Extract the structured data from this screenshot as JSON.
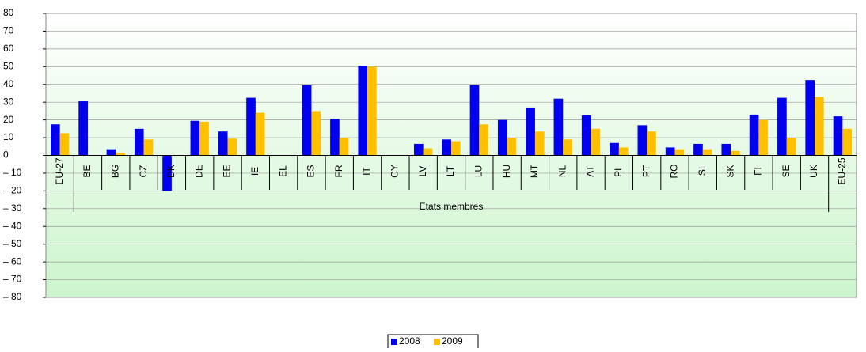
{
  "chart_data": {
    "type": "bar",
    "x_label": "Etats membres",
    "categories": [
      "EU-27",
      "BE",
      "BG",
      "CZ",
      "DK",
      "DE",
      "EE",
      "IE",
      "EL",
      "ES",
      "FR",
      "IT",
      "CY",
      "LV",
      "LT",
      "LU",
      "HU",
      "MT",
      "NL",
      "AT",
      "PL",
      "PT",
      "RO",
      "SI",
      "SK",
      "FI",
      "SE",
      "UK",
      "EU-25"
    ],
    "series": [
      {
        "name": "2008",
        "color": "#0000ee",
        "values": [
          17.5,
          30.5,
          3.5,
          15,
          -20,
          19.5,
          13.5,
          32.5,
          null,
          39.5,
          20.5,
          50.5,
          null,
          6.5,
          9,
          39.5,
          20,
          27,
          32,
          22.5,
          7,
          17,
          4.5,
          6.5,
          6.5,
          23,
          32.5,
          42.5,
          22
        ]
      },
      {
        "name": "2009",
        "color": "#ffc000",
        "values": [
          12.5,
          null,
          1.5,
          9,
          null,
          19,
          9.5,
          24,
          null,
          25,
          10,
          50,
          null,
          4,
          8,
          17.5,
          10,
          13.5,
          9,
          15,
          4.5,
          13.5,
          3.5,
          3.5,
          2.5,
          20,
          10,
          33,
          15
        ]
      }
    ],
    "ylim": [
      -80,
      80
    ],
    "yticks": [
      {
        "value": -80,
        "label": "– 80"
      },
      {
        "value": -70,
        "label": "– 70"
      },
      {
        "value": -60,
        "label": "– 60"
      },
      {
        "value": -50,
        "label": "– 50"
      },
      {
        "value": -40,
        "label": "– 40"
      },
      {
        "value": -30,
        "label": "– 30"
      },
      {
        "value": -20,
        "label": "– 20"
      },
      {
        "value": -10,
        "label": "– 10"
      },
      0,
      10,
      20,
      30,
      40,
      50,
      60,
      70,
      80
    ],
    "grid": true,
    "legend": "bottom"
  }
}
